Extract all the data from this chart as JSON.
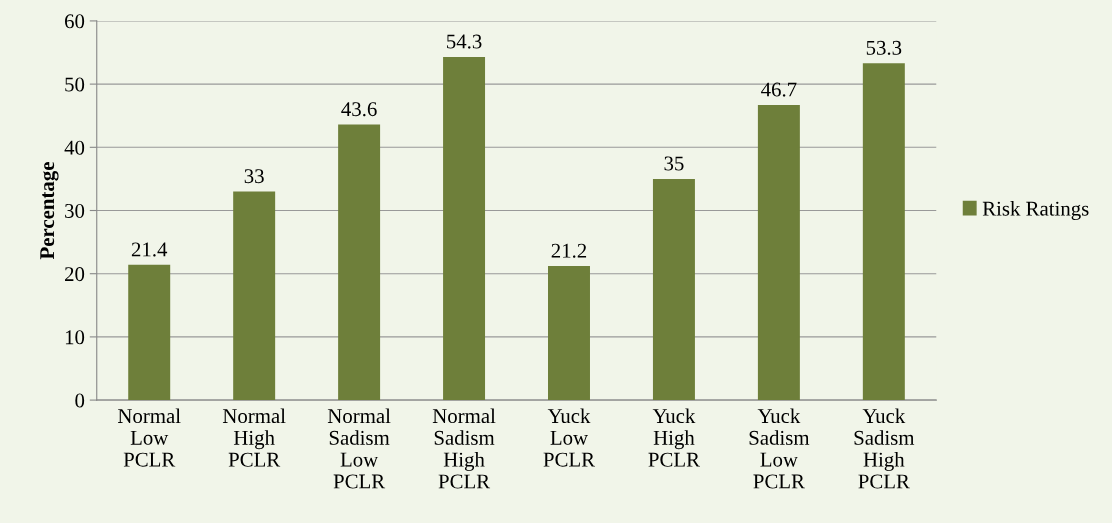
{
  "chart_data": {
    "type": "bar",
    "ylabel": "Percentage",
    "categories": [
      "Normal\nLow\nPCLR",
      "Normal\nHigh\nPCLR",
      "Normal\nSadism\nLow\nPCLR",
      "Normal\nSadism\nHigh\nPCLR",
      "Yuck\nLow\nPCLR",
      "Yuck\nHigh\nPCLR",
      "Yuck\nSadism\nLow\nPCLR",
      "Yuck\nSadism\nHigh\nPCLR"
    ],
    "series": [
      {
        "name": "Risk Ratings",
        "color": "#6e7f3a",
        "values": [
          21.4,
          33,
          43.6,
          54.3,
          21.2,
          35,
          46.7,
          53.3
        ]
      }
    ],
    "ylim": [
      0,
      60
    ],
    "yticks": [
      0,
      10,
      20,
      30,
      40,
      50,
      60
    ],
    "grid": "y",
    "legend": "right",
    "data_labels": true
  }
}
